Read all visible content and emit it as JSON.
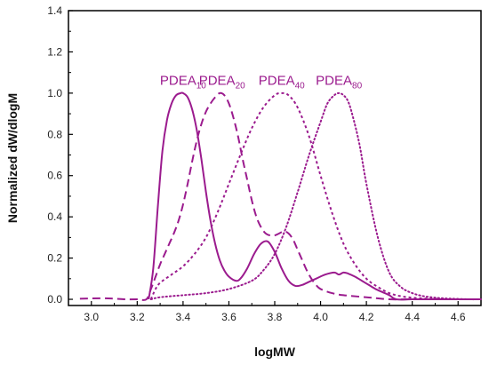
{
  "chart_data": {
    "type": "line",
    "title": "",
    "xlabel": "logMW",
    "ylabel": "Normalized dW/dlogM",
    "xlim": [
      2.9,
      4.7
    ],
    "ylim": [
      -0.03,
      1.4
    ],
    "xticks": [
      3.0,
      3.2,
      3.4,
      3.6,
      3.8,
      4.0,
      4.2,
      4.4,
      4.6
    ],
    "yticks": [
      0.0,
      0.2,
      0.4,
      0.6,
      0.8,
      1.0,
      1.2,
      1.4
    ],
    "xtick_labels": [
      "3.0",
      "3.2",
      "3.4",
      "3.6",
      "3.8",
      "4.0",
      "4.2",
      "4.4",
      "4.6"
    ],
    "ytick_labels": [
      "0.0",
      "0.2",
      "0.4",
      "0.6",
      "0.8",
      "1.0",
      "1.2",
      "1.4"
    ],
    "grid": false,
    "legend": "none",
    "line_color": "#9b1b8e",
    "series": [
      {
        "name": "PDEA10",
        "label_main": "PDEA",
        "label_sub": "10",
        "style": "solid",
        "x": [
          3.25,
          3.27,
          3.29,
          3.31,
          3.33,
          3.35,
          3.37,
          3.39,
          3.4,
          3.42,
          3.44,
          3.46,
          3.48,
          3.5,
          3.52,
          3.54,
          3.56,
          3.58,
          3.6,
          3.63,
          3.65,
          3.68,
          3.71,
          3.74,
          3.77,
          3.8,
          3.83,
          3.86,
          3.89,
          3.92,
          3.95,
          3.98,
          4.02,
          4.06,
          4.08,
          4.1,
          4.12,
          4.15,
          4.18,
          4.21,
          4.24,
          4.27,
          4.3,
          4.33,
          4.4,
          4.5,
          4.6,
          4.7
        ],
        "y": [
          0.0,
          0.15,
          0.45,
          0.72,
          0.87,
          0.95,
          0.99,
          1.0,
          1.0,
          0.98,
          0.92,
          0.82,
          0.68,
          0.52,
          0.38,
          0.27,
          0.19,
          0.14,
          0.11,
          0.09,
          0.1,
          0.15,
          0.22,
          0.27,
          0.28,
          0.23,
          0.15,
          0.09,
          0.065,
          0.07,
          0.085,
          0.1,
          0.12,
          0.13,
          0.12,
          0.13,
          0.125,
          0.11,
          0.09,
          0.07,
          0.05,
          0.035,
          0.02,
          0.0,
          0.0,
          0.0,
          0.0,
          0.0
        ]
      },
      {
        "name": "PDEA20",
        "label_main": "PDEA",
        "label_sub": "20",
        "style": "dashed",
        "x": [
          2.95,
          3.05,
          3.1,
          3.15,
          3.2,
          3.24,
          3.26,
          3.28,
          3.3,
          3.32,
          3.34,
          3.36,
          3.38,
          3.4,
          3.42,
          3.44,
          3.46,
          3.48,
          3.5,
          3.52,
          3.54,
          3.56,
          3.58,
          3.6,
          3.62,
          3.64,
          3.66,
          3.68,
          3.7,
          3.72,
          3.74,
          3.76,
          3.78,
          3.8,
          3.82,
          3.84,
          3.86,
          3.88,
          3.9,
          3.92,
          3.94,
          3.96,
          3.98,
          4.0,
          4.05,
          4.1,
          4.2,
          4.3,
          4.4,
          4.5,
          4.6,
          4.7
        ],
        "y": [
          0.003,
          0.005,
          0.003,
          0.0,
          0.0,
          0.0,
          0.05,
          0.11,
          0.17,
          0.22,
          0.27,
          0.32,
          0.38,
          0.46,
          0.56,
          0.67,
          0.77,
          0.85,
          0.91,
          0.95,
          0.98,
          1.0,
          0.99,
          0.95,
          0.88,
          0.79,
          0.68,
          0.58,
          0.48,
          0.4,
          0.35,
          0.32,
          0.31,
          0.31,
          0.32,
          0.33,
          0.32,
          0.29,
          0.24,
          0.19,
          0.14,
          0.1,
          0.07,
          0.05,
          0.03,
          0.02,
          0.01,
          0.0,
          0.0,
          0.0,
          0.0,
          0.0
        ]
      },
      {
        "name": "PDEA40",
        "label_main": "PDEA",
        "label_sub": "40",
        "style": "short-dash",
        "x": [
          3.26,
          3.28,
          3.3,
          3.35,
          3.4,
          3.45,
          3.5,
          3.55,
          3.6,
          3.65,
          3.7,
          3.75,
          3.8,
          3.83,
          3.86,
          3.9,
          3.95,
          4.0,
          4.05,
          4.1,
          4.15,
          4.2,
          4.25,
          4.3,
          4.35,
          4.4,
          4.45,
          4.5,
          4.55,
          4.6,
          4.7
        ],
        "y": [
          0.0,
          0.05,
          0.08,
          0.12,
          0.16,
          0.22,
          0.3,
          0.42,
          0.56,
          0.7,
          0.83,
          0.93,
          0.99,
          1.0,
          0.99,
          0.93,
          0.79,
          0.6,
          0.42,
          0.27,
          0.17,
          0.1,
          0.06,
          0.03,
          0.015,
          0.008,
          0.004,
          0.002,
          0.0,
          0.0,
          0.0
        ]
      },
      {
        "name": "PDEA80",
        "label_main": "PDEA",
        "label_sub": "80",
        "style": "dotted",
        "x": [
          3.26,
          3.3,
          3.4,
          3.5,
          3.6,
          3.7,
          3.75,
          3.8,
          3.85,
          3.9,
          3.95,
          4.0,
          4.03,
          4.06,
          4.08,
          4.1,
          4.12,
          4.14,
          4.17,
          4.2,
          4.25,
          4.3,
          4.35,
          4.4,
          4.45,
          4.5,
          4.55,
          4.6,
          4.65,
          4.7
        ],
        "y": [
          0.0,
          0.01,
          0.02,
          0.03,
          0.05,
          0.09,
          0.14,
          0.22,
          0.35,
          0.52,
          0.7,
          0.86,
          0.95,
          0.99,
          1.0,
          0.99,
          0.96,
          0.89,
          0.75,
          0.56,
          0.3,
          0.13,
          0.06,
          0.03,
          0.015,
          0.008,
          0.004,
          0.002,
          0.0,
          0.0
        ]
      }
    ],
    "annotations": [
      {
        "series": "PDEA10",
        "x": 3.4,
        "y": 1.04
      },
      {
        "series": "PDEA20",
        "x": 3.57,
        "y": 1.04
      },
      {
        "series": "PDEA40",
        "x": 3.83,
        "y": 1.04
      },
      {
        "series": "PDEA80",
        "x": 4.08,
        "y": 1.04
      }
    ]
  }
}
